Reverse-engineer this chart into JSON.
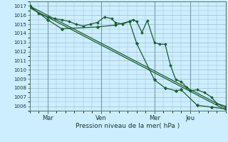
{
  "bg_color": "#cceeff",
  "grid_color": "#99bbcc",
  "line_color": "#1a5c2a",
  "marker_color": "#1a5c2a",
  "xlabel": "Pression niveau de la mer( hPa )",
  "ylim": [
    1005.5,
    1017.5
  ],
  "yticks": [
    1006,
    1007,
    1008,
    1009,
    1010,
    1011,
    1012,
    1013,
    1014,
    1015,
    1016,
    1017
  ],
  "x_tick_labels": [
    "Mar",
    "Ven",
    "Mer",
    "Jeu"
  ],
  "x_tick_positions": [
    1,
    4,
    7,
    9
  ],
  "xlim": [
    0,
    11
  ],
  "line1_x": [
    0.0,
    0.5,
    1.0,
    1.4,
    1.8,
    2.2,
    2.6,
    3.0,
    3.4,
    3.8,
    4.2,
    4.6,
    4.8,
    5.2,
    5.6,
    5.8,
    6.0,
    6.3,
    6.6,
    7.0,
    7.3,
    7.6,
    7.9,
    8.2,
    8.5,
    8.8,
    9.0,
    9.4,
    9.8,
    10.2,
    10.5,
    11.0
  ],
  "line1_y": [
    1017.0,
    1016.2,
    1015.8,
    1015.6,
    1015.5,
    1015.3,
    1015.0,
    1014.8,
    1015.0,
    1015.2,
    1015.8,
    1015.6,
    1015.2,
    1015.0,
    1015.3,
    1015.5,
    1015.3,
    1014.1,
    1015.4,
    1013.0,
    1012.8,
    1012.8,
    1010.5,
    1008.9,
    1008.7,
    1008.1,
    1007.7,
    1007.8,
    1007.5,
    1007.0,
    1006.3,
    1006.0
  ],
  "line2_x": [
    0.0,
    1.0,
    1.8,
    3.8,
    4.8,
    5.6,
    6.0,
    7.0,
    7.6,
    8.2,
    8.5,
    9.4,
    10.2,
    11.0
  ],
  "line2_y": [
    1017.0,
    1015.5,
    1014.5,
    1014.7,
    1014.9,
    1015.3,
    1012.9,
    1008.9,
    1008.0,
    1007.7,
    1007.8,
    1006.1,
    1005.9,
    1005.7
  ],
  "trend_x": [
    0.0,
    11.0
  ],
  "trend_y": [
    1017.0,
    1005.8
  ],
  "trend2_x": [
    0.0,
    11.0
  ],
  "trend2_y": [
    1016.8,
    1005.6
  ]
}
